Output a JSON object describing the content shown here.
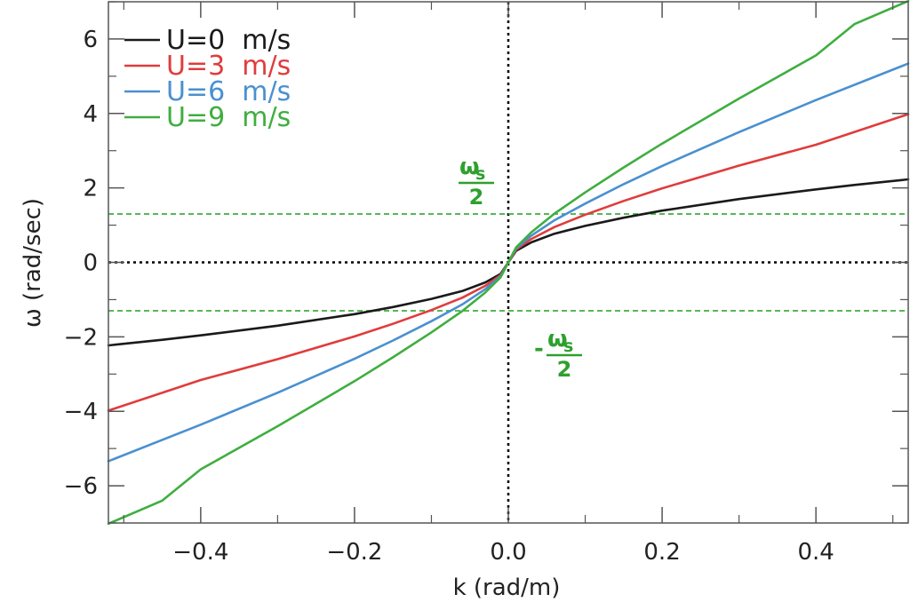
{
  "chart_data": {
    "type": "line",
    "title": "",
    "xlabel": "k (rad/m)",
    "ylabel": "ω (rad/sec)",
    "xlim": [
      -0.52,
      0.52
    ],
    "ylim": [
      -7,
      7
    ],
    "x_ticks": [
      -0.4,
      -0.2,
      0.0,
      0.2,
      0.4
    ],
    "x_tick_labels": [
      "−0.4",
      "−0.2",
      "0.0",
      "0.2",
      "0.4"
    ],
    "y_ticks": [
      -6,
      -4,
      -2,
      0,
      2,
      4,
      6
    ],
    "y_tick_labels": [
      "−6",
      "−4",
      "−2",
      "0",
      "2",
      "4",
      "6"
    ],
    "grid": false,
    "legend_position": "top-left",
    "series": [
      {
        "name": "U=0  m/s",
        "color": "#1a1a1a",
        "points": [
          [
            -0.52,
            -2.23
          ],
          [
            -0.45,
            -2.08
          ],
          [
            -0.4,
            -1.96
          ],
          [
            -0.3,
            -1.7
          ],
          [
            -0.2,
            -1.39
          ],
          [
            -0.15,
            -1.2
          ],
          [
            -0.1,
            -0.98
          ],
          [
            -0.06,
            -0.77
          ],
          [
            -0.03,
            -0.54
          ],
          [
            -0.01,
            -0.31
          ],
          [
            0.0,
            0.0
          ],
          [
            0.01,
            0.31
          ],
          [
            0.03,
            0.54
          ],
          [
            0.06,
            0.77
          ],
          [
            0.1,
            0.98
          ],
          [
            0.15,
            1.2
          ],
          [
            0.2,
            1.39
          ],
          [
            0.3,
            1.7
          ],
          [
            0.4,
            1.96
          ],
          [
            0.45,
            2.08
          ],
          [
            0.52,
            2.23
          ]
        ]
      },
      {
        "name": "U=3  m/s",
        "color": "#e03c3c",
        "points": [
          [
            -0.52,
            -3.98
          ],
          [
            -0.4,
            -3.16
          ],
          [
            -0.3,
            -2.6
          ],
          [
            -0.2,
            -1.99
          ],
          [
            -0.15,
            -1.65
          ],
          [
            -0.1,
            -1.28
          ],
          [
            -0.06,
            -0.95
          ],
          [
            -0.03,
            -0.63
          ],
          [
            -0.01,
            -0.34
          ],
          [
            0.0,
            0.0
          ],
          [
            0.01,
            0.34
          ],
          [
            0.03,
            0.63
          ],
          [
            0.06,
            0.95
          ],
          [
            0.1,
            1.28
          ],
          [
            0.15,
            1.65
          ],
          [
            0.2,
            1.99
          ],
          [
            0.3,
            2.6
          ],
          [
            0.4,
            3.16
          ],
          [
            0.52,
            3.98
          ]
        ]
      },
      {
        "name": "U=6  m/s",
        "color": "#4a90d0",
        "points": [
          [
            -0.52,
            -5.34
          ],
          [
            -0.4,
            -4.36
          ],
          [
            -0.3,
            -3.5
          ],
          [
            -0.2,
            -2.59
          ],
          [
            -0.15,
            -2.1
          ],
          [
            -0.1,
            -1.58
          ],
          [
            -0.06,
            -1.13
          ],
          [
            -0.03,
            -0.72
          ],
          [
            -0.01,
            -0.37
          ],
          [
            0.0,
            0.0
          ],
          [
            0.01,
            0.37
          ],
          [
            0.03,
            0.72
          ],
          [
            0.06,
            1.13
          ],
          [
            0.1,
            1.58
          ],
          [
            0.15,
            2.1
          ],
          [
            0.2,
            2.59
          ],
          [
            0.3,
            3.5
          ],
          [
            0.4,
            4.36
          ],
          [
            0.52,
            5.34
          ]
        ]
      },
      {
        "name": "U=9  m/s",
        "color": "#3fae3f",
        "points": [
          [
            -0.52,
            -7.02
          ],
          [
            -0.45,
            -6.4
          ],
          [
            -0.4,
            -5.56
          ],
          [
            -0.3,
            -4.4
          ],
          [
            -0.2,
            -3.19
          ],
          [
            -0.15,
            -2.55
          ],
          [
            -0.1,
            -1.88
          ],
          [
            -0.06,
            -1.31
          ],
          [
            -0.03,
            -0.81
          ],
          [
            -0.01,
            -0.4
          ],
          [
            0.0,
            0.0
          ],
          [
            0.01,
            0.4
          ],
          [
            0.03,
            0.81
          ],
          [
            0.06,
            1.31
          ],
          [
            0.1,
            1.88
          ],
          [
            0.15,
            2.55
          ],
          [
            0.2,
            3.19
          ],
          [
            0.3,
            4.4
          ],
          [
            0.4,
            5.56
          ],
          [
            0.45,
            6.4
          ],
          [
            0.52,
            7.02
          ]
        ]
      }
    ],
    "reference_lines": [
      {
        "orientation": "horizontal",
        "value": 0,
        "color": "#000000",
        "style": "dotted"
      },
      {
        "orientation": "vertical",
        "value": 0,
        "color": "#000000",
        "style": "dotted"
      },
      {
        "orientation": "horizontal",
        "value": 1.3,
        "color": "#3fae3f",
        "style": "dashed"
      },
      {
        "orientation": "horizontal",
        "value": -1.3,
        "color": "#3fae3f",
        "style": "dashed"
      }
    ],
    "annotations": {
      "upper": {
        "numerator": "ω",
        "subscript": "s",
        "denominator": "2",
        "color": "#2ea02e"
      },
      "lower": {
        "sign": "-",
        "numerator": "ω",
        "subscript": "s",
        "denominator": "2",
        "color": "#2ea02e"
      }
    }
  }
}
